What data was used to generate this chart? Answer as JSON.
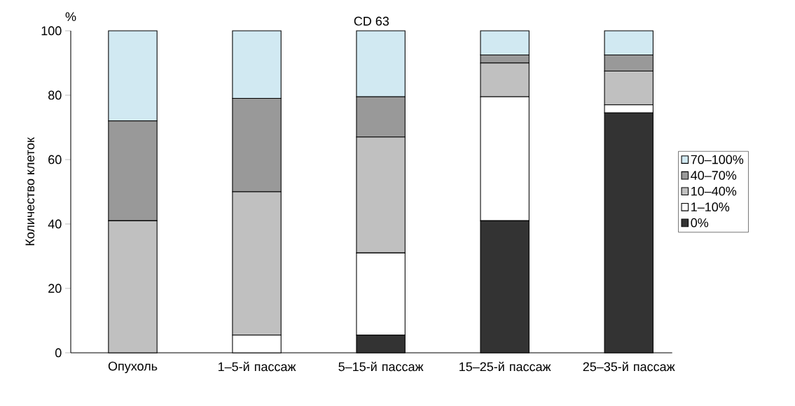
{
  "chart_data": {
    "type": "bar",
    "stacked": true,
    "title": "CD 63",
    "ylabel": "Количество клеток",
    "annotations": [
      "%"
    ],
    "categories": [
      "Опухоль",
      "1–5-й пассаж",
      "5–15-й пассаж",
      "15–25-й пассаж",
      "25–35-й пассаж"
    ],
    "series": [
      {
        "name": "0%",
        "color": "#333333",
        "values": [
          0,
          0,
          5.5,
          41,
          74.5
        ]
      },
      {
        "name": "1–10%",
        "color": "#ffffff",
        "values": [
          0,
          5.5,
          25.5,
          38.5,
          2.5
        ]
      },
      {
        "name": "10–40%",
        "color": "#c0c0c0",
        "values": [
          41,
          44.5,
          36,
          10.5,
          10.5
        ]
      },
      {
        "name": "40–70%",
        "color": "#999999",
        "values": [
          31,
          29,
          12.5,
          2.5,
          5
        ]
      },
      {
        "name": "70–100%",
        "color": "#d1e9f2",
        "values": [
          28,
          21,
          20.5,
          7.5,
          7.5
        ]
      }
    ],
    "ylim": [
      0,
      100
    ],
    "yticks": [
      0,
      20,
      40,
      60,
      80,
      100
    ],
    "legend": "right",
    "grid": false
  }
}
